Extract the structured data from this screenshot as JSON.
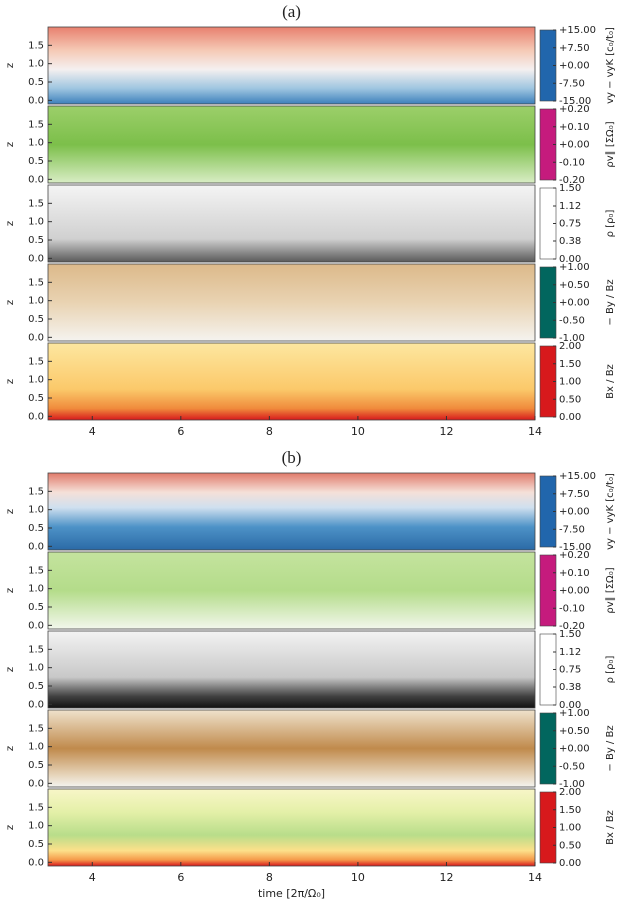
{
  "chart_data": [
    {
      "type": "heatmap",
      "title": "(a)",
      "ylabel": "z",
      "xlim": [
        3,
        14
      ],
      "ylim": [
        -0.1,
        2.0
      ],
      "yticks": [
        {
          "value": 0,
          "label": "0.0"
        },
        {
          "value": 0.5,
          "label": "0.5"
        },
        {
          "value": 1,
          "label": "1.0"
        },
        {
          "value": 1.5,
          "label": "1.5"
        }
      ],
      "colorbar": {
        "label": "vy − vyK [c₀/t₀]",
        "lim": [
          -15,
          15
        ],
        "colors": [
          "#2166ac",
          "#92c5de",
          "#f7f7f7",
          "#f4a582",
          "#b2182b"
        ],
        "ticks": [
          {
            "value": 15,
            "label": "+15.00"
          },
          {
            "value": 7.5,
            "label": "+7.50"
          },
          {
            "value": 0,
            "label": "+0.00"
          },
          {
            "value": -7.5,
            "label": "-7.50"
          },
          {
            "value": -15,
            "label": "-15.00"
          }
        ]
      }
    },
    {
      "type": "heatmap",
      "ylabel": "z",
      "xlim": [
        3,
        14
      ],
      "ylim": [
        -0.1,
        2.0
      ],
      "yticks": [
        {
          "value": 0,
          "label": "0.0"
        },
        {
          "value": 0.5,
          "label": "0.5"
        },
        {
          "value": 1,
          "label": "1.0"
        },
        {
          "value": 1.5,
          "label": "1.5"
        }
      ],
      "colorbar": {
        "label": "ρv∥ [ΣΩ₀]",
        "lim": [
          -0.2,
          0.2
        ],
        "colors": [
          "#c51b7d",
          "#f1b6da",
          "#f7f7f7",
          "#b8e186",
          "#4d9221"
        ],
        "ticks": [
          {
            "value": 0.2,
            "label": "+0.20"
          },
          {
            "value": 0.1,
            "label": "+0.10"
          },
          {
            "value": 0,
            "label": "+0.00"
          },
          {
            "value": -0.1,
            "label": "-0.10"
          },
          {
            "value": -0.2,
            "label": "-0.20"
          }
        ]
      }
    },
    {
      "type": "heatmap",
      "ylabel": "z",
      "xlim": [
        3,
        14
      ],
      "ylim": [
        -0.1,
        2.0
      ],
      "yticks": [
        {
          "value": 0,
          "label": "0.0"
        },
        {
          "value": 0.5,
          "label": "0.5"
        },
        {
          "value": 1,
          "label": "1.0"
        },
        {
          "value": 1.5,
          "label": "1.5"
        }
      ],
      "colorbar": {
        "label": "ρ [ρ₀]",
        "lim": [
          0,
          1.5
        ],
        "colors": [
          "#ffffff",
          "#bdbdbd",
          "#000000"
        ],
        "ticks": [
          {
            "value": 1.5,
            "label": "1.50"
          },
          {
            "value": 1.12,
            "label": "1.12"
          },
          {
            "value": 0.75,
            "label": "0.75"
          },
          {
            "value": 0.38,
            "label": "0.38"
          },
          {
            "value": 0,
            "label": "0.00"
          }
        ]
      }
    },
    {
      "type": "heatmap",
      "ylabel": "z",
      "xlim": [
        3,
        14
      ],
      "ylim": [
        -0.1,
        2.0
      ],
      "yticks": [
        {
          "value": 0,
          "label": "0.0"
        },
        {
          "value": 0.5,
          "label": "0.5"
        },
        {
          "value": 1,
          "label": "1.0"
        },
        {
          "value": 1.5,
          "label": "1.5"
        }
      ],
      "colorbar": {
        "label": "− By / Bz",
        "lim": [
          -1,
          1
        ],
        "colors": [
          "#01665e",
          "#80cdc1",
          "#f5f5f5",
          "#dfc27d",
          "#8c510a"
        ],
        "ticks": [
          {
            "value": 1,
            "label": "+1.00"
          },
          {
            "value": 0.5,
            "label": "+0.50"
          },
          {
            "value": 0,
            "label": "+0.00"
          },
          {
            "value": -0.5,
            "label": "-0.50"
          },
          {
            "value": -1,
            "label": "-1.00"
          }
        ]
      }
    },
    {
      "type": "heatmap",
      "ylabel": "z",
      "xlim": [
        3,
        14
      ],
      "ylim": [
        -0.1,
        2.0
      ],
      "xticks": [
        4,
        6,
        8,
        10,
        12,
        14
      ],
      "yticks": [
        {
          "value": 0,
          "label": "0.0"
        },
        {
          "value": 0.5,
          "label": "0.5"
        },
        {
          "value": 1,
          "label": "1.0"
        },
        {
          "value": 1.5,
          "label": "1.5"
        }
      ],
      "colorbar": {
        "label": "Bx / Bz",
        "lim": [
          0,
          2
        ],
        "colors": [
          "#d7191c",
          "#fdae61",
          "#ffffbf",
          "#a6d96a",
          "#1a9641"
        ],
        "ticks": [
          {
            "value": 2,
            "label": "2.00"
          },
          {
            "value": 1.5,
            "label": "1.50"
          },
          {
            "value": 1,
            "label": "1.00"
          },
          {
            "value": 0.5,
            "label": "0.50"
          },
          {
            "value": 0,
            "label": "0.00"
          }
        ]
      }
    },
    {
      "type": "heatmap",
      "title": "(b)",
      "ylabel": "z",
      "xlim": [
        3,
        14
      ],
      "ylim": [
        -0.1,
        2.0
      ],
      "yticks": [
        {
          "value": 0,
          "label": "0.0"
        },
        {
          "value": 0.5,
          "label": "0.5"
        },
        {
          "value": 1,
          "label": "1.0"
        },
        {
          "value": 1.5,
          "label": "1.5"
        }
      ],
      "colorbar": {
        "label": "vy − vyK [c₀/t₀]",
        "lim": [
          -15,
          15
        ],
        "colors": [
          "#2166ac",
          "#92c5de",
          "#f7f7f7",
          "#f4a582",
          "#b2182b"
        ],
        "ticks": [
          {
            "value": 15,
            "label": "+15.00"
          },
          {
            "value": 7.5,
            "label": "+7.50"
          },
          {
            "value": 0,
            "label": "+0.00"
          },
          {
            "value": -7.5,
            "label": "-7.50"
          },
          {
            "value": -15,
            "label": "-15.00"
          }
        ]
      }
    },
    {
      "type": "heatmap",
      "ylabel": "z",
      "xlim": [
        3,
        14
      ],
      "ylim": [
        -0.1,
        2.0
      ],
      "yticks": [
        {
          "value": 0,
          "label": "0.0"
        },
        {
          "value": 0.5,
          "label": "0.5"
        },
        {
          "value": 1,
          "label": "1.0"
        },
        {
          "value": 1.5,
          "label": "1.5"
        }
      ],
      "colorbar": {
        "label": "ρv∥ [ΣΩ₀]",
        "lim": [
          -0.2,
          0.2
        ],
        "colors": [
          "#c51b7d",
          "#f1b6da",
          "#f7f7f7",
          "#b8e186",
          "#4d9221"
        ],
        "ticks": [
          {
            "value": 0.2,
            "label": "+0.20"
          },
          {
            "value": 0.1,
            "label": "+0.10"
          },
          {
            "value": 0,
            "label": "+0.00"
          },
          {
            "value": -0.1,
            "label": "-0.10"
          },
          {
            "value": -0.2,
            "label": "-0.20"
          }
        ]
      }
    },
    {
      "type": "heatmap",
      "ylabel": "z",
      "xlim": [
        3,
        14
      ],
      "ylim": [
        -0.1,
        2.0
      ],
      "yticks": [
        {
          "value": 0,
          "label": "0.0"
        },
        {
          "value": 0.5,
          "label": "0.5"
        },
        {
          "value": 1,
          "label": "1.0"
        },
        {
          "value": 1.5,
          "label": "1.5"
        }
      ],
      "colorbar": {
        "label": "ρ [ρ₀]",
        "lim": [
          0,
          1.5
        ],
        "colors": [
          "#ffffff",
          "#bdbdbd",
          "#000000"
        ],
        "ticks": [
          {
            "value": 1.5,
            "label": "1.50"
          },
          {
            "value": 1.12,
            "label": "1.12"
          },
          {
            "value": 0.75,
            "label": "0.75"
          },
          {
            "value": 0.38,
            "label": "0.38"
          },
          {
            "value": 0,
            "label": "0.00"
          }
        ]
      }
    },
    {
      "type": "heatmap",
      "ylabel": "z",
      "xlim": [
        3,
        14
      ],
      "ylim": [
        -0.1,
        2.0
      ],
      "yticks": [
        {
          "value": 0,
          "label": "0.0"
        },
        {
          "value": 0.5,
          "label": "0.5"
        },
        {
          "value": 1,
          "label": "1.0"
        },
        {
          "value": 1.5,
          "label": "1.5"
        }
      ],
      "colorbar": {
        "label": "− By / Bz",
        "lim": [
          -1,
          1
        ],
        "colors": [
          "#01665e",
          "#80cdc1",
          "#f5f5f5",
          "#dfc27d",
          "#8c510a"
        ],
        "ticks": [
          {
            "value": 1,
            "label": "+1.00"
          },
          {
            "value": 0.5,
            "label": "+0.50"
          },
          {
            "value": 0,
            "label": "+0.00"
          },
          {
            "value": -0.5,
            "label": "-0.50"
          },
          {
            "value": -1,
            "label": "-1.00"
          }
        ]
      }
    },
    {
      "type": "heatmap",
      "ylabel": "z",
      "xlim": [
        3,
        14
      ],
      "ylim": [
        -0.1,
        2.0
      ],
      "xticks": [
        4,
        6,
        8,
        10,
        12,
        14
      ],
      "xlabel": "time [2π/Ω₀]",
      "yticks": [
        {
          "value": 0,
          "label": "0.0"
        },
        {
          "value": 0.5,
          "label": "0.5"
        },
        {
          "value": 1,
          "label": "1.0"
        },
        {
          "value": 1.5,
          "label": "1.5"
        }
      ],
      "colorbar": {
        "label": "Bx / Bz",
        "lim": [
          0,
          2
        ],
        "colors": [
          "#d7191c",
          "#fdae61",
          "#ffffbf",
          "#a6d96a",
          "#1a9641"
        ],
        "ticks": [
          {
            "value": 2,
            "label": "2.00"
          },
          {
            "value": 1.5,
            "label": "1.50"
          },
          {
            "value": 1,
            "label": "1.00"
          },
          {
            "value": 0.5,
            "label": "0.50"
          },
          {
            "value": 0,
            "label": "0.00"
          }
        ]
      }
    }
  ]
}
